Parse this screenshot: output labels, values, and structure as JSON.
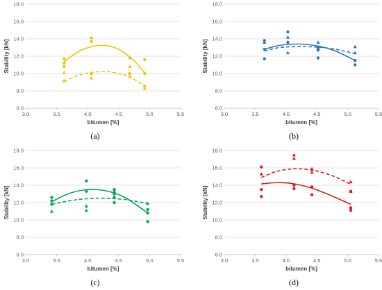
{
  "chart_data": [
    {
      "type": "scatter",
      "caption": "(a)",
      "xlabel": "bitumen [%]",
      "ylabel": "Stability [kN]",
      "xlim": [
        3.0,
        5.5
      ],
      "ylim": [
        6.0,
        18.0
      ],
      "xticks": [
        "3.0",
        "3.5",
        "4.0",
        "4.5",
        "5.0",
        "5.5"
      ],
      "yticks": [
        "6.0",
        "8.0",
        "10.0",
        "12.0",
        "14.0",
        "16.0",
        "18.0"
      ],
      "grid": "horizontal",
      "color": "#F2C200",
      "series": [
        {
          "marker": "circle",
          "trendline": "solid",
          "points": [
            [
              3.62,
              11.7
            ],
            [
              3.62,
              11.2
            ],
            [
              3.62,
              10.8
            ],
            [
              4.06,
              14.1
            ],
            [
              4.06,
              13.7
            ],
            [
              4.68,
              11.8
            ],
            [
              4.68,
              10.0
            ],
            [
              4.92,
              11.6
            ],
            [
              4.92,
              10.0
            ]
          ],
          "trend": [
            [
              3.62,
              11.4
            ],
            [
              3.9,
              12.7
            ],
            [
              4.2,
              13.25
            ],
            [
              4.45,
              12.95
            ],
            [
              4.7,
              11.8
            ],
            [
              4.92,
              10.1
            ]
          ]
        },
        {
          "marker": "triangle",
          "trendline": "dashed",
          "points": [
            [
              3.62,
              10.1
            ],
            [
              3.62,
              9.2
            ],
            [
              4.06,
              10.0
            ],
            [
              4.06,
              9.5
            ],
            [
              4.68,
              10.8
            ],
            [
              4.68,
              9.7
            ],
            [
              4.92,
              8.6
            ],
            [
              4.92,
              8.3
            ]
          ],
          "trend": [
            [
              3.62,
              9.1
            ],
            [
              3.9,
              9.9
            ],
            [
              4.25,
              10.25
            ],
            [
              4.5,
              10.0
            ],
            [
              4.7,
              9.5
            ],
            [
              4.92,
              8.6
            ]
          ]
        }
      ]
    },
    {
      "type": "scatter",
      "caption": "(b)",
      "xlabel": "bitumen [%]",
      "ylabel": "Stability [kN]",
      "xlim": [
        3.0,
        5.5
      ],
      "ylim": [
        6.0,
        18.0
      ],
      "xticks": [
        "3.0",
        "3.5",
        "4.0",
        "4.5",
        "5.0",
        "5.5"
      ],
      "yticks": [
        "6.0",
        "8.0",
        "10.0",
        "12.0",
        "14.0",
        "16.0",
        "18.0"
      ],
      "grid": "horizontal",
      "color": "#2E75B6",
      "series": [
        {
          "marker": "circle",
          "trendline": "solid",
          "points": [
            [
              3.65,
              13.8
            ],
            [
              3.65,
              12.8
            ],
            [
              3.65,
              11.7
            ],
            [
              4.03,
              14.8
            ],
            [
              4.03,
              13.6
            ],
            [
              4.52,
              13.0
            ],
            [
              4.52,
              12.7
            ],
            [
              4.52,
              11.8
            ],
            [
              5.12,
              11.5
            ],
            [
              5.12,
              11.0
            ]
          ],
          "trend": [
            [
              3.65,
              12.8
            ],
            [
              3.9,
              13.25
            ],
            [
              4.2,
              13.4
            ],
            [
              4.5,
              13.2
            ],
            [
              4.8,
              12.6
            ],
            [
              5.12,
              11.5
            ]
          ]
        },
        {
          "marker": "triangle",
          "trendline": "dashed",
          "points": [
            [
              3.65,
              13.6
            ],
            [
              4.03,
              14.2
            ],
            [
              4.03,
              12.4
            ],
            [
              4.52,
              13.6
            ],
            [
              4.52,
              12.9
            ],
            [
              5.12,
              13.1
            ],
            [
              5.12,
              12.4
            ]
          ],
          "trend": [
            [
              3.65,
              12.6
            ],
            [
              3.9,
              13.0
            ],
            [
              4.2,
              13.1
            ],
            [
              4.5,
              13.05
            ],
            [
              4.8,
              12.8
            ],
            [
              5.12,
              12.3
            ]
          ]
        }
      ]
    },
    {
      "type": "scatter",
      "caption": "(c)",
      "xlabel": "bitumen [%]",
      "ylabel": "Stability [kN]",
      "xlim": [
        3.0,
        5.5
      ],
      "ylim": [
        6.0,
        18.0
      ],
      "xticks": [
        "3.0",
        "3.5",
        "4.0",
        "4.5",
        "5.0",
        "5.5"
      ],
      "yticks": [
        "6.0",
        "8.0",
        "10.0",
        "12.0",
        "14.0",
        "16.0",
        "18.0"
      ],
      "grid": "horizontal",
      "color": "#00A650",
      "series": [
        {
          "marker": "circle",
          "trendline": "solid",
          "points": [
            [
              3.42,
              12.6
            ],
            [
              3.42,
              12.2
            ],
            [
              3.42,
              11.8
            ],
            [
              3.98,
              14.5
            ],
            [
              3.98,
              13.3
            ],
            [
              4.43,
              13.5
            ],
            [
              4.43,
              13.0
            ],
            [
              4.43,
              12.0
            ],
            [
              4.97,
              11.2
            ],
            [
              4.97,
              10.8
            ],
            [
              4.97,
              9.8
            ]
          ],
          "trend": [
            [
              3.42,
              12.1
            ],
            [
              3.7,
              13.05
            ],
            [
              4.0,
              13.5
            ],
            [
              4.3,
              13.35
            ],
            [
              4.6,
              12.6
            ],
            [
              4.97,
              10.8
            ]
          ]
        },
        {
          "marker": "triangle",
          "trendline": "dashed",
          "points": [
            [
              3.42,
              11.0
            ],
            [
              3.98,
              11.6
            ],
            [
              3.98,
              11.1
            ],
            [
              4.43,
              13.3
            ],
            [
              4.43,
              12.7
            ],
            [
              4.97,
              11.9
            ]
          ],
          "trend": [
            [
              3.42,
              11.8
            ],
            [
              3.7,
              12.2
            ],
            [
              4.0,
              12.45
            ],
            [
              4.3,
              12.5
            ],
            [
              4.6,
              12.35
            ],
            [
              4.97,
              11.9
            ]
          ]
        }
      ]
    },
    {
      "type": "scatter",
      "caption": "(d)",
      "xlabel": "bitumen [%]",
      "ylabel": "Stability [kN]",
      "xlim": [
        3.0,
        5.5
      ],
      "ylim": [
        6.0,
        18.0
      ],
      "xticks": [
        "3.0",
        "3.5",
        "4.0",
        "4.5",
        "5.0",
        "5.5"
      ],
      "yticks": [
        "6.0",
        "8.0",
        "10.0",
        "12.0",
        "14.0",
        "16.0",
        "18.0"
      ],
      "grid": "horizontal",
      "color": "#E31A1C",
      "series": [
        {
          "marker": "circle",
          "trendline": "solid",
          "points": [
            [
              3.6,
              16.1
            ],
            [
              3.6,
              13.5
            ],
            [
              3.6,
              12.7
            ],
            [
              4.13,
              14.0
            ],
            [
              4.13,
              13.6
            ],
            [
              4.42,
              13.8
            ],
            [
              4.42,
              12.9
            ],
            [
              5.05,
              13.3
            ],
            [
              5.05,
              11.4
            ],
            [
              5.05,
              11.1
            ]
          ],
          "trend": [
            [
              3.6,
              14.15
            ],
            [
              3.85,
              14.3
            ],
            [
              4.1,
              14.2
            ],
            [
              4.4,
              13.7
            ],
            [
              4.7,
              12.9
            ],
            [
              5.05,
              11.8
            ]
          ]
        },
        {
          "marker": "triangle",
          "trendline": "dashed",
          "points": [
            [
              3.6,
              15.3
            ],
            [
              4.13,
              17.5
            ],
            [
              4.13,
              17.1
            ],
            [
              4.42,
              15.9
            ],
            [
              4.42,
              15.5
            ],
            [
              5.05,
              14.4
            ],
            [
              5.05,
              13.3
            ]
          ],
          "trend": [
            [
              3.6,
              14.9
            ],
            [
              3.85,
              15.6
            ],
            [
              4.15,
              15.9
            ],
            [
              4.45,
              15.7
            ],
            [
              4.75,
              15.1
            ],
            [
              5.05,
              14.1
            ]
          ]
        }
      ]
    }
  ]
}
